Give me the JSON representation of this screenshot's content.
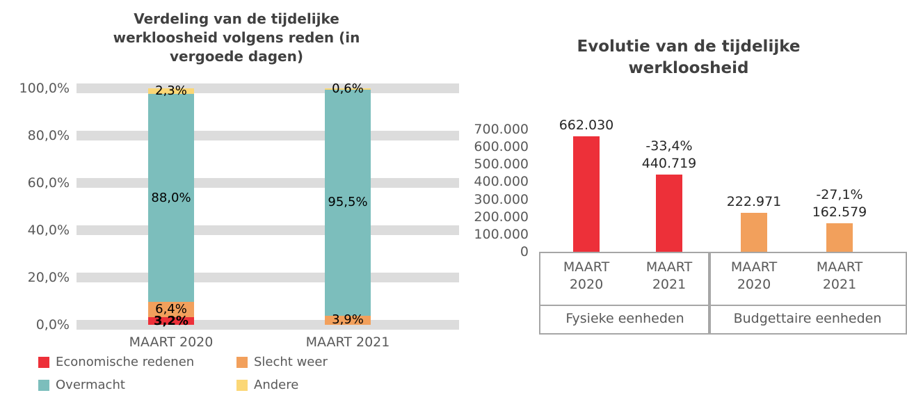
{
  "chart_data": [
    {
      "type": "bar",
      "subtype": "stacked-100-percent",
      "title": "Verdeling van de tijdelijke werkloosheid volgens reden (in vergoede dagen)",
      "title_lines": [
        "Verdeling van de tijdelijke",
        "werkloosheid volgens reden (in",
        "vergoede dagen)"
      ],
      "categories": [
        "MAART 2020",
        "MAART 2021"
      ],
      "series": [
        {
          "name": "Economische redenen",
          "color": "#ED3039",
          "values": [
            3.2,
            0
          ],
          "value_labels": [
            "3,2%",
            ""
          ],
          "label_bold": true
        },
        {
          "name": "Slecht weer",
          "color": "#F2A05C",
          "values": [
            6.4,
            3.9
          ],
          "value_labels": [
            "6,4%",
            "3,9%"
          ],
          "label_bold": false
        },
        {
          "name": "Overmacht",
          "color": "#7CBEBC",
          "values": [
            88.0,
            95.5
          ],
          "value_labels": [
            "88,0%",
            "95,5%"
          ],
          "label_bold": false
        },
        {
          "name": "Andere",
          "color": "#FBD776",
          "values": [
            2.3,
            0.6
          ],
          "value_labels": [
            "2,3%",
            "0,6%"
          ],
          "label_bold": false
        }
      ],
      "ylim": [
        0,
        100
      ],
      "ytick_labels": [
        "0,0%",
        "20,0%",
        "40,0%",
        "60,0%",
        "80,0%",
        "100,0%"
      ],
      "grid": "horizontal-bands",
      "grid_band_color": "#DCDCDC",
      "legend_position": "bottom-two-columns"
    },
    {
      "type": "bar",
      "subtype": "grouped",
      "title": "Evolutie van de tijdelijke werkloosheid",
      "title_lines": [
        "Evolutie van de tijdelijke",
        "werkloosheid"
      ],
      "groups": [
        {
          "name": "Fysieke eenheden",
          "color": "#ED3039",
          "bars": [
            {
              "category": "MAART 2020",
              "category_lines": [
                "MAART",
                "2020"
              ],
              "value": 662030,
              "value_label": "662.030",
              "delta_label": ""
            },
            {
              "category": "MAART 2021",
              "category_lines": [
                "MAART",
                "2021"
              ],
              "value": 440719,
              "value_label": "440.719",
              "delta_label": "-33,4%"
            }
          ]
        },
        {
          "name": "Budgettaire eenheden",
          "color": "#F2A05C",
          "bars": [
            {
              "category": "MAART 2020",
              "category_lines": [
                "MAART",
                "2020"
              ],
              "value": 222971,
              "value_label": "222.971",
              "delta_label": ""
            },
            {
              "category": "MAART 2021",
              "category_lines": [
                "MAART",
                "2021"
              ],
              "value": 162579,
              "value_label": "162.579",
              "delta_label": "-27,1%"
            }
          ]
        }
      ],
      "ylim": [
        0,
        700000
      ],
      "ytick_step": 100000,
      "ytick_labels": [
        "0",
        "100.000",
        "200.000",
        "300.000",
        "400.000",
        "500.000",
        "600.000",
        "700.000"
      ],
      "grid": "none",
      "legend_position": "none",
      "axis_table_border_color": "#A6A6A6"
    }
  ]
}
